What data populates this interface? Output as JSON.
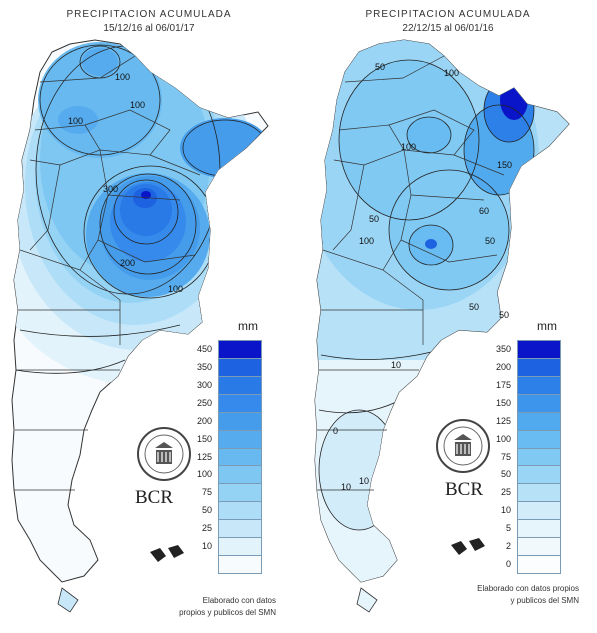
{
  "maps": [
    {
      "title": "PRECIPITACION ACUMULADA",
      "period": "15/12/16 al 06/01/17",
      "unit": "mm",
      "legend": [
        {
          "label": "450",
          "color": "#0a14c8"
        },
        {
          "label": "350",
          "color": "#1d62e0"
        },
        {
          "label": "300",
          "color": "#2979e6"
        },
        {
          "label": "250",
          "color": "#358aeb"
        },
        {
          "label": "200",
          "color": "#449ceb"
        },
        {
          "label": "150",
          "color": "#55abee"
        },
        {
          "label": "125",
          "color": "#67b9f0"
        },
        {
          "label": "100",
          "color": "#7dc7f2"
        },
        {
          "label": "75",
          "color": "#95d3f5"
        },
        {
          "label": "50",
          "color": "#aedef7"
        },
        {
          "label": "25",
          "color": "#c8e8f9"
        },
        {
          "label": "10",
          "color": "#e2f3fb"
        },
        {
          "label": "",
          "color": "#f7fbfd"
        }
      ],
      "contour_labels": [
        "100",
        "100",
        "100",
        "300",
        "200",
        "100"
      ],
      "brand": "BCR",
      "credit_line1": "Elaborado con datos",
      "credit_line2": "propios y publicos del SMN"
    },
    {
      "title": "PRECIPITACION ACUMULADA",
      "period": "22/12/15 al 06/01/16",
      "unit": "mm",
      "legend": [
        {
          "label": "350",
          "color": "#0a14c8"
        },
        {
          "label": "200",
          "color": "#1d62e0"
        },
        {
          "label": "175",
          "color": "#2d80e8"
        },
        {
          "label": "150",
          "color": "#3d96eb"
        },
        {
          "label": "125",
          "color": "#52aaee"
        },
        {
          "label": "100",
          "color": "#68bcf1"
        },
        {
          "label": "75",
          "color": "#80c9f3"
        },
        {
          "label": "50",
          "color": "#9bd5f5"
        },
        {
          "label": "25",
          "color": "#b7e1f7"
        },
        {
          "label": "10",
          "color": "#d2ecf9"
        },
        {
          "label": "5",
          "color": "#e6f4fb"
        },
        {
          "label": "2",
          "color": "#f2f9fc"
        },
        {
          "label": "0",
          "color": "#fbfdfe"
        }
      ],
      "contour_labels": [
        "50",
        "100",
        "100",
        "150",
        "50",
        "100",
        "60",
        "50",
        "50",
        "50",
        "10",
        "10",
        "10",
        "0"
      ],
      "brand": "BCR",
      "credit_line1": "Elaborado con datos propios",
      "credit_line2": "y publicos del SMN"
    }
  ]
}
